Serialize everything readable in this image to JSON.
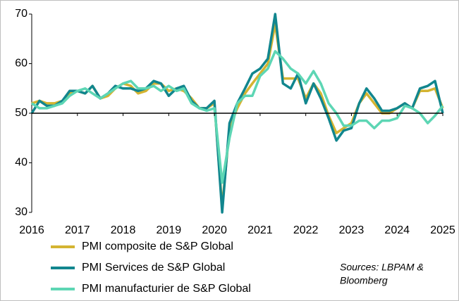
{
  "chart_data": {
    "type": "line",
    "x": [
      2016,
      2016.17,
      2016.33,
      2016.5,
      2016.67,
      2016.83,
      2017,
      2017.17,
      2017.33,
      2017.5,
      2017.67,
      2017.83,
      2018,
      2018.17,
      2018.33,
      2018.5,
      2018.67,
      2018.83,
      2019,
      2019.17,
      2019.33,
      2019.5,
      2019.67,
      2019.83,
      2020,
      2020.17,
      2020.33,
      2020.5,
      2020.67,
      2020.83,
      2021,
      2021.17,
      2021.33,
      2021.5,
      2021.67,
      2021.83,
      2022,
      2022.17,
      2022.33,
      2022.5,
      2022.67,
      2022.83,
      2023,
      2023.17,
      2023.33,
      2023.5,
      2023.67,
      2023.83,
      2024,
      2024.17,
      2024.33,
      2024.5,
      2024.67,
      2024.83,
      2025
    ],
    "series": [
      {
        "name": "PMI composite de S&P Global",
        "color": "#d4b431",
        "values": [
          52,
          52.5,
          52,
          52,
          52.5,
          54,
          54.5,
          54,
          55.5,
          53,
          53.5,
          55,
          56,
          55.5,
          54,
          54.5,
          56,
          56,
          54.5,
          55,
          54.5,
          53,
          51,
          51,
          52,
          31,
          47,
          51,
          54,
          56,
          58,
          60,
          68,
          57,
          57,
          57,
          53,
          56,
          54,
          49.5,
          46,
          47,
          48,
          52,
          54,
          52,
          50,
          50,
          51,
          52,
          51,
          54.5,
          54.5,
          55,
          51
        ]
      },
      {
        "name": "PMI Services de S&P Global",
        "color": "#11868e",
        "values": [
          50,
          52.5,
          51.5,
          51.5,
          52.5,
          54.5,
          54.5,
          54,
          55.5,
          53,
          54,
          55.5,
          55,
          55,
          54.5,
          55,
          56.5,
          56,
          53.5,
          55,
          55.5,
          52.5,
          51,
          51,
          52.5,
          30,
          48,
          52,
          55,
          58,
          59,
          61,
          70,
          56,
          55,
          58,
          52,
          56,
          53,
          49,
          44.5,
          46.5,
          47,
          52,
          55,
          53,
          50.5,
          50.5,
          51,
          52,
          51,
          55,
          55.5,
          56.5,
          50
        ]
      },
      {
        "name": "PMI manufacturier de S&P Global",
        "color": "#5dd6b4",
        "values": [
          52,
          51,
          51,
          51.5,
          52,
          53.5,
          54.5,
          55,
          54,
          53,
          54,
          55,
          56,
          56.5,
          55,
          55,
          55.5,
          54.5,
          55.5,
          54.5,
          55,
          52,
          51,
          50.5,
          51,
          36,
          45,
          52,
          53.5,
          53.5,
          57.5,
          59,
          62.5,
          61,
          59,
          58,
          56,
          58.5,
          56,
          52,
          50,
          47.5,
          47.5,
          48.5,
          48.5,
          47,
          48.5,
          48.5,
          49,
          51.5,
          51,
          50,
          48,
          49.5,
          51.5
        ]
      }
    ],
    "xlim": [
      2016,
      2025
    ],
    "xticks": [
      2016,
      2017,
      2018,
      2019,
      2020,
      2021,
      2022,
      2023,
      2024,
      2025
    ],
    "ylim": [
      30,
      70
    ],
    "yticks": [
      30,
      40,
      50,
      60,
      70
    ],
    "reference_line": 50,
    "annotation": [
      "Sources: LBPAM &",
      "Bloomberg"
    ]
  }
}
